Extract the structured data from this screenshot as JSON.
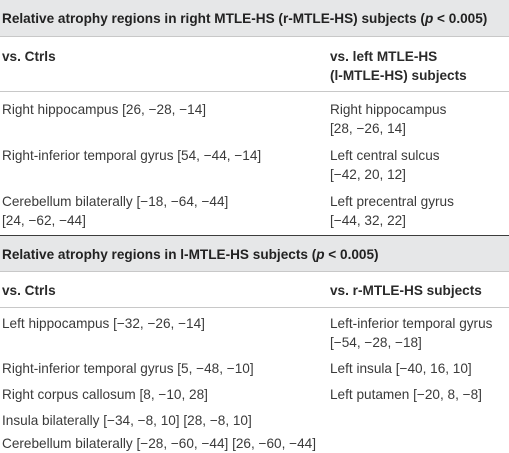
{
  "section1": {
    "title_text": "Relative atrophy regions in right MTLE-HS (r-MTLE-HS) subjects (",
    "title_p": "p",
    "title_end": " < 0.005)",
    "col1": "vs. Ctrls",
    "col2_line1": "vs. left MTLE-HS",
    "col2_line2": "(l-MTLE-HS) subjects",
    "rows": [
      {
        "c1a": "Right hippocampus [26, −28, −14]",
        "c1b": "",
        "c2a": "Right hippocampus",
        "c2b": "[28, −26, 14]"
      },
      {
        "c1a": "Right-inferior temporal gyrus [54, −44, −14]",
        "c1b": "",
        "c2a": "Left central sulcus",
        "c2b": "[−42, 20, 12]"
      },
      {
        "c1a": "Cerebellum bilaterally [−18, −64, −44]",
        "c1b": "[24, −62, −44]",
        "c2a": "Left precentral gyrus",
        "c2b": "[−44, 32, 22]"
      }
    ]
  },
  "section2": {
    "title_text": "Relative atrophy regions in l-MTLE-HS subjects (",
    "title_p": "p",
    "title_end": " < 0.005)",
    "col1": "vs. Ctrls",
    "col2": "vs. r-MTLE-HS subjects",
    "rows": [
      {
        "c1a": "Left hippocampus [−32, −26, −14]",
        "c2a": "Left-inferior temporal gyrus",
        "c2b": "[−54, −28, −18]"
      },
      {
        "c1a": "Right-inferior temporal gyrus [5, −48, −10]",
        "c2a": "Left insula [−40, 16, 10]",
        "c2b": ""
      },
      {
        "c1a": "Right corpus callosum [8, −10, 28]",
        "c2a": "Left putamen [−20, 8, −8]",
        "c2b": ""
      },
      {
        "c1a": "Insula bilaterally [−34, −8, 10] [28, −8, 10]",
        "c2a": "",
        "c2b": ""
      },
      {
        "c1a": "Cerebellum bilaterally [−28, −60, −44] [26, −60, −44]",
        "c2a": "",
        "c2b": ""
      }
    ]
  }
}
